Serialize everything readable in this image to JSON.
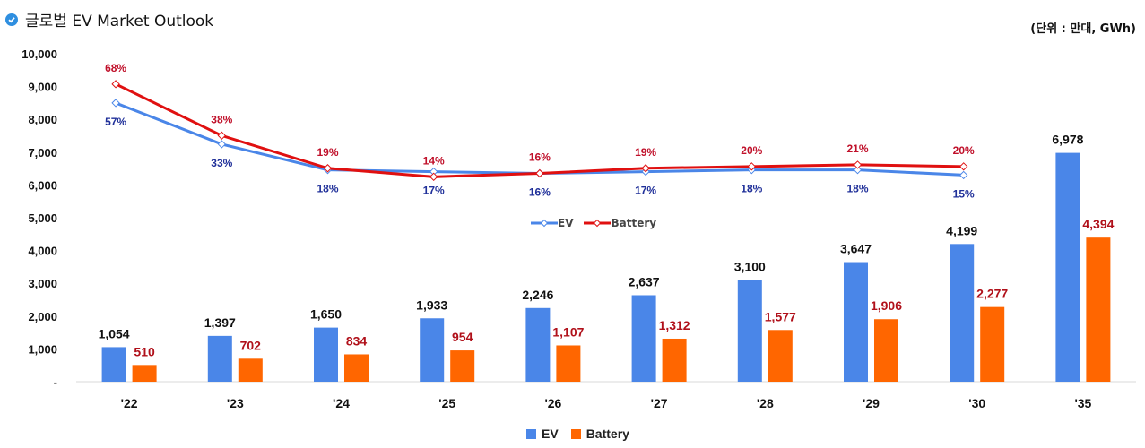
{
  "header": {
    "title": "글로벌 EV Market Outlook",
    "unit": "(단위 : 만대, GWh)"
  },
  "colors": {
    "ev": "#4a86e8",
    "battery": "#ff6600",
    "ev_line": "#4a86e8",
    "battery_line": "#e01010",
    "ev_pct_label": "#1f2f99",
    "battery_pct_label": "#c0102a",
    "battery_bar_label": "#b0101a"
  },
  "chart_data": {
    "type": "bar",
    "title": "글로벌 EV Market Outlook",
    "categories": [
      "'22",
      "'23",
      "'24",
      "'25",
      "'26",
      "'27",
      "'28",
      "'29",
      "'30",
      "'35"
    ],
    "series": [
      {
        "name": "EV",
        "values": [
          1054,
          1397,
          1650,
          1933,
          2246,
          2637,
          3100,
          3647,
          4199,
          6978
        ],
        "labels": [
          "1,054",
          "1,397",
          "1,650",
          "1,933",
          "2,246",
          "2,637",
          "3,100",
          "3,647",
          "4,199",
          "6,978"
        ]
      },
      {
        "name": "Battery",
        "values": [
          510,
          702,
          834,
          954,
          1107,
          1312,
          1577,
          1906,
          2277,
          4394
        ],
        "labels": [
          "510",
          "702",
          "834",
          "954",
          "1,107",
          "1,312",
          "1,577",
          "1,906",
          "2,277",
          "4,394"
        ]
      }
    ],
    "line_series": [
      {
        "name": "EV",
        "type": "line",
        "values": [
          57,
          33,
          18,
          17,
          16,
          17,
          18,
          18,
          15
        ],
        "labels": [
          "57%",
          "33%",
          "18%",
          "17%",
          "16%",
          "17%",
          "18%",
          "18%",
          "15%"
        ]
      },
      {
        "name": "Battery",
        "type": "line",
        "values": [
          68,
          38,
          19,
          14,
          16,
          19,
          20,
          21,
          20
        ],
        "labels": [
          "68%",
          "38%",
          "19%",
          "14%",
          "16%",
          "19%",
          "20%",
          "21%",
          "20%"
        ]
      }
    ],
    "ylim": [
      0,
      10000
    ],
    "yticks": [
      0,
      1000,
      2000,
      3000,
      4000,
      5000,
      6000,
      7000,
      8000,
      9000,
      10000
    ],
    "ytick_labels": [
      "-",
      "1,000",
      "2,000",
      "3,000",
      "4,000",
      "5,000",
      "6,000",
      "7,000",
      "8,000",
      "9,000",
      "10,000"
    ],
    "xlabel": "",
    "ylabel": "",
    "legend_bars": [
      "EV",
      "Battery"
    ],
    "legend_lines": [
      "EV",
      "Battery"
    ]
  }
}
